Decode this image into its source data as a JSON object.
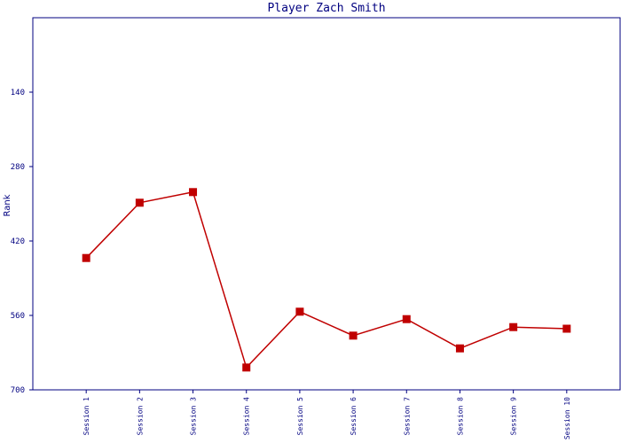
{
  "chart_data": {
    "type": "line",
    "title": "Player Zach Smith",
    "y_label": "Rank",
    "categories": [
      "Session 1",
      "Session 2",
      "Session 3",
      "Session 4",
      "Session 5",
      "Session 6",
      "Session 7",
      "Session 8",
      "Session 9",
      "Session 10"
    ],
    "series": [
      {
        "name": "Rank",
        "color": "#c00000",
        "values": [
          452,
          348,
          328,
          658,
          553,
          598,
          567,
          622,
          582,
          585
        ]
      }
    ],
    "ylim": [
      0,
      700
    ],
    "y_inverted": true,
    "yticks": [
      140,
      280,
      420,
      560,
      700
    ],
    "axis_color": "#000080"
  }
}
